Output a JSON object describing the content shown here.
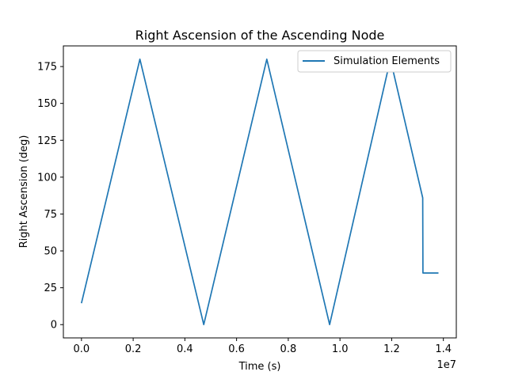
{
  "chart_data": {
    "type": "line",
    "title": "Right Ascension of the Ascending Node",
    "xlabel": "Time (s)",
    "ylabel": "Right Ascension (deg)",
    "x_offset_label": "1e7",
    "xlim": [
      -0.07,
      1.45
    ],
    "ylim": [
      -9,
      189
    ],
    "xticks": [
      0.0,
      0.2,
      0.4,
      0.6,
      0.8,
      1.0,
      1.2,
      1.4
    ],
    "xtick_labels": [
      "0.0",
      "0.2",
      "0.4",
      "0.6",
      "0.8",
      "1.0",
      "1.2",
      "1.4"
    ],
    "yticks": [
      0,
      25,
      50,
      75,
      100,
      125,
      150,
      175
    ],
    "ytick_labels": [
      "0",
      "25",
      "50",
      "75",
      "100",
      "125",
      "150",
      "175"
    ],
    "grid": false,
    "legend_position": "upper right",
    "series": [
      {
        "name": "Simulation Elements",
        "color": "#1f77b4",
        "x": [
          0.0,
          0.226,
          0.473,
          0.717,
          0.96,
          1.195,
          1.32,
          1.321,
          1.381
        ],
        "y": [
          14.5,
          180,
          0,
          180,
          0,
          180,
          86,
          35,
          35
        ]
      }
    ]
  }
}
